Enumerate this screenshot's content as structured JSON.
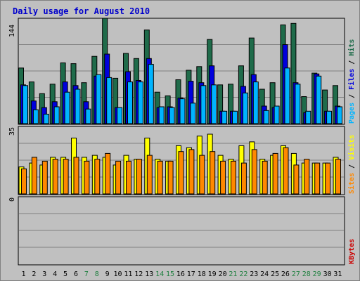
{
  "colors": {
    "hits": "#1f6b4a",
    "files": "#0000dd",
    "pages": "#00b4ff",
    "visits": "#ffff00",
    "sites": "#ff8800",
    "kbytes": "#cc0000",
    "weekday": "#000000",
    "weekend": "#208040",
    "background": "#c0c0c0"
  },
  "legend": {
    "pages": "Pages",
    "files": "Files",
    "hits": "Hits",
    "sites": "Sites",
    "visits": "Visits",
    "kbytes": "KBytes",
    "sep": " / "
  },
  "chart_data": [
    {
      "type": "bar",
      "title": "Daily usage for August 2010",
      "panel": "hits-files-pages",
      "categories": [
        "1",
        "2",
        "3",
        "4",
        "5",
        "6",
        "7",
        "8",
        "9",
        "10",
        "11",
        "12",
        "13",
        "14",
        "15",
        "16",
        "17",
        "18",
        "19",
        "20",
        "21",
        "22",
        "23",
        "24",
        "25",
        "26",
        "27",
        "28",
        "29",
        "30",
        "31"
      ],
      "weekend": [
        false,
        false,
        false,
        false,
        false,
        false,
        true,
        true,
        false,
        false,
        false,
        false,
        false,
        true,
        true,
        false,
        false,
        false,
        false,
        false,
        true,
        true,
        false,
        false,
        false,
        false,
        true,
        true,
        true,
        false,
        false
      ],
      "ymax_label": "144",
      "ylim": [
        0,
        144
      ],
      "series": [
        {
          "name": "Hits",
          "values": [
            76,
            57,
            41,
            54,
            83,
            82,
            56,
            92,
            144,
            62,
            96,
            89,
            128,
            43,
            38,
            60,
            73,
            78,
            115,
            53,
            54,
            79,
            117,
            47,
            56,
            135,
            137,
            37,
            69,
            46,
            52
          ]
        },
        {
          "name": "Files",
          "values": [
            53,
            31,
            22,
            30,
            57,
            52,
            30,
            65,
            95,
            22,
            71,
            59,
            89,
            22,
            23,
            35,
            58,
            56,
            79,
            17,
            17,
            51,
            67,
            24,
            22,
            108,
            56,
            15,
            68,
            17,
            24
          ]
        },
        {
          "name": "Pages",
          "values": [
            52,
            19,
            13,
            23,
            43,
            47,
            20,
            67,
            63,
            22,
            57,
            57,
            81,
            23,
            22,
            34,
            28,
            52,
            53,
            17,
            17,
            42,
            57,
            18,
            24,
            76,
            54,
            17,
            65,
            17,
            23
          ]
        }
      ]
    },
    {
      "type": "bar",
      "panel": "visits-sites",
      "ymax_label": "35",
      "ylim": [
        0,
        35
      ],
      "series": [
        {
          "name": "Visits",
          "values": [
            14,
            16,
            15,
            19,
            19,
            29,
            19,
            20,
            19,
            15,
            20,
            18,
            29,
            18,
            17,
            25,
            24,
            30,
            31,
            20,
            18,
            25,
            27,
            18,
            20,
            25,
            21,
            16,
            16,
            16,
            19
          ]
        },
        {
          "name": "Sites",
          "values": [
            13,
            19,
            17,
            18,
            18,
            19,
            17,
            18,
            21,
            17,
            17,
            18,
            20,
            17,
            17,
            22,
            23,
            20,
            22,
            17,
            17,
            16,
            23,
            17,
            21,
            24,
            15,
            18,
            16,
            16,
            18
          ]
        }
      ]
    },
    {
      "type": "bar",
      "panel": "kbytes",
      "ymax_label": "0",
      "ylim": [
        0,
        1
      ],
      "series": [
        {
          "name": "KBytes",
          "values": [
            0,
            0,
            0,
            0,
            0,
            0,
            0,
            0,
            0,
            0,
            0,
            0,
            0,
            0,
            0,
            0,
            0,
            0,
            0,
            0,
            0,
            0,
            0,
            0,
            0,
            0,
            0,
            0,
            0,
            0,
            0
          ]
        }
      ]
    }
  ]
}
